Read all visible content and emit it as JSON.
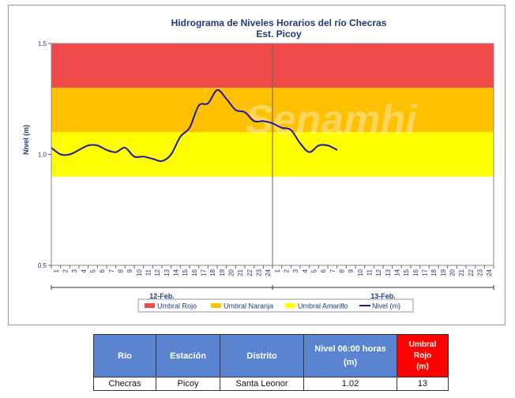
{
  "colors": {
    "umbral_rojo": "#f0494a",
    "umbral_naranja": "#ffc000",
    "umbral_amarillo": "#ffff00",
    "nivel_line": "#1a1aa8",
    "header_blue": "#5b84d0",
    "header_red": "#ff0000",
    "text_blue": "#1f3a7a"
  },
  "watermark": "Senamhi",
  "chart_data": {
    "type": "line",
    "title": "Hidrograma de Niveles Horarios del río Checras",
    "subtitle": "Est. Picoy",
    "ylabel": "Nivel (m)",
    "ylim": [
      0.5,
      1.5
    ],
    "yticks": [
      "0.5",
      "1.0",
      "1.5"
    ],
    "x_tick_labels": [
      "1",
      "2",
      "3",
      "4",
      "5",
      "6",
      "7",
      "8",
      "9",
      "10",
      "11",
      "12",
      "13",
      "14",
      "15",
      "16",
      "17",
      "18",
      "19",
      "20",
      "21",
      "22",
      "23",
      "24",
      "1",
      "2",
      "3",
      "4",
      "5",
      "6",
      "7",
      "8",
      "9",
      "10",
      "11",
      "12",
      "13",
      "14",
      "15",
      "16",
      "17",
      "18",
      "19",
      "20",
      "21",
      "22",
      "23",
      "24"
    ],
    "dates": [
      "12-Feb.",
      "13-Feb."
    ],
    "bands": [
      {
        "name": "Umbral Rojo",
        "from": 1.3,
        "to": 1.5,
        "color": "#f0494a"
      },
      {
        "name": "Umbral Naranja",
        "from": 1.1,
        "to": 1.3,
        "color": "#ffc000"
      },
      {
        "name": "Umbral Amarillo",
        "from": 0.9,
        "to": 1.1,
        "color": "#ffff00"
      }
    ],
    "series": [
      {
        "name": "Nivel (m)",
        "color": "#1a1aa8",
        "x": [
          0,
          1,
          2,
          3,
          4,
          5,
          6,
          7,
          8,
          9,
          10,
          11,
          12,
          13,
          14,
          15,
          16,
          17,
          18,
          19,
          20,
          21,
          22,
          23,
          24,
          25,
          26,
          27,
          28,
          29,
          30,
          31
        ],
        "values": [
          1.03,
          1.0,
          1.0,
          1.02,
          1.04,
          1.04,
          1.02,
          1.01,
          1.03,
          0.99,
          0.99,
          0.98,
          0.97,
          1.0,
          1.08,
          1.12,
          1.22,
          1.23,
          1.29,
          1.25,
          1.2,
          1.19,
          1.15,
          1.15,
          1.14,
          1.12,
          1.11,
          1.05,
          1.01,
          1.04,
          1.04,
          1.02
        ]
      }
    ],
    "legend": [
      {
        "label": "Umbral Rojo",
        "color": "#f0494a",
        "kind": "bar"
      },
      {
        "label": "Umbral Naranja",
        "color": "#ffc000",
        "kind": "bar"
      },
      {
        "label": "Umbral Amarillo",
        "color": "#ffff00",
        "kind": "bar"
      },
      {
        "label": "Nivel (m)",
        "color": "#1a1aa8",
        "kind": "line"
      }
    ],
    "legend_position": "bottom"
  },
  "table": {
    "headers": {
      "rio": "Río",
      "estacion": "Estación",
      "distrito": "Distrito",
      "nivel_line1": "Nivel 06:00 horas",
      "nivel_line2": "(m)",
      "umbral_line1": "Umbral",
      "umbral_line2": "Rojo",
      "umbral_line3": "(m)"
    },
    "row": {
      "rio": "Checras",
      "estacion": "Picoy",
      "distrito": "Santa Leonor",
      "nivel": "1.02",
      "umbral": "13"
    }
  }
}
